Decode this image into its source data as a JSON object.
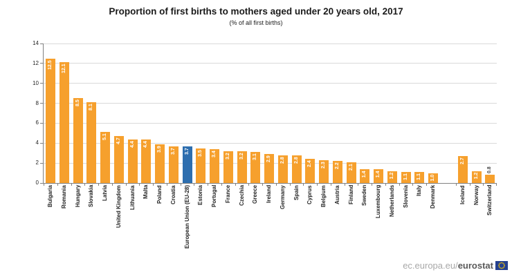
{
  "title": "Proportion of first births to mothers aged under 20 years old, 2017",
  "subtitle": "(% of all first births)",
  "footer": {
    "url_prefix": "ec.europa.eu/",
    "url_bold": "eurostat",
    "flag_icon": "eu-flag-icon"
  },
  "colors": {
    "bar_orange": "#F6A02D",
    "bar_blue_eu": "#2D6EAF",
    "gridline": "#D9D9D9",
    "axis": "#808080",
    "value_label_inside": "#FFFFFF",
    "value_label_outside": "#404040",
    "title_text": "#1A1A1A",
    "footer_gray": "#A8A8A8",
    "footer_dark": "#595959",
    "flag_blue": "#24408F",
    "flag_stars": "#FFCC00"
  },
  "chart_data": {
    "type": "bar",
    "title": "Proportion of first births to mothers aged under 20 years old, 2017",
    "subtitle": "(% of all first births)",
    "xlabel": "",
    "ylabel": "",
    "ylim": [
      0,
      14
    ],
    "yticks": [
      0,
      2,
      4,
      6,
      8,
      10,
      12,
      14
    ],
    "grid": true,
    "legend": false,
    "value_labels_decimals": 1,
    "highlight_index": 10,
    "highlight_category": "European Union (EU-28)",
    "group_gap_before_index": 29,
    "categories": [
      "Bulgaria",
      "Romania",
      "Hungary",
      "Slovakia",
      "Latvia",
      "United Kingdom",
      "Lithuania",
      "Malta",
      "Poland",
      "Croatia",
      "European Union (EU-28)",
      "Estonia",
      "Portugal",
      "France",
      "Czechia",
      "Greece",
      "Ireland",
      "Germany",
      "Spain",
      "Cyprus",
      "Belgium",
      "Austria",
      "Finland",
      "Sweden",
      "Luxembourg",
      "Netherlands",
      "Slovenia",
      "Italy",
      "Denmark",
      "Iceland",
      "Norway",
      "Switzerland"
    ],
    "values": [
      12.5,
      12.1,
      8.5,
      8.1,
      5.1,
      4.7,
      4.4,
      4.4,
      3.9,
      3.7,
      3.7,
      3.5,
      3.4,
      3.2,
      3.2,
      3.1,
      2.9,
      2.8,
      2.8,
      2.4,
      2.3,
      2.2,
      2.1,
      1.4,
      1.4,
      1.2,
      1.1,
      1.1,
      1.0,
      2.7,
      1.2,
      0.8
    ]
  }
}
